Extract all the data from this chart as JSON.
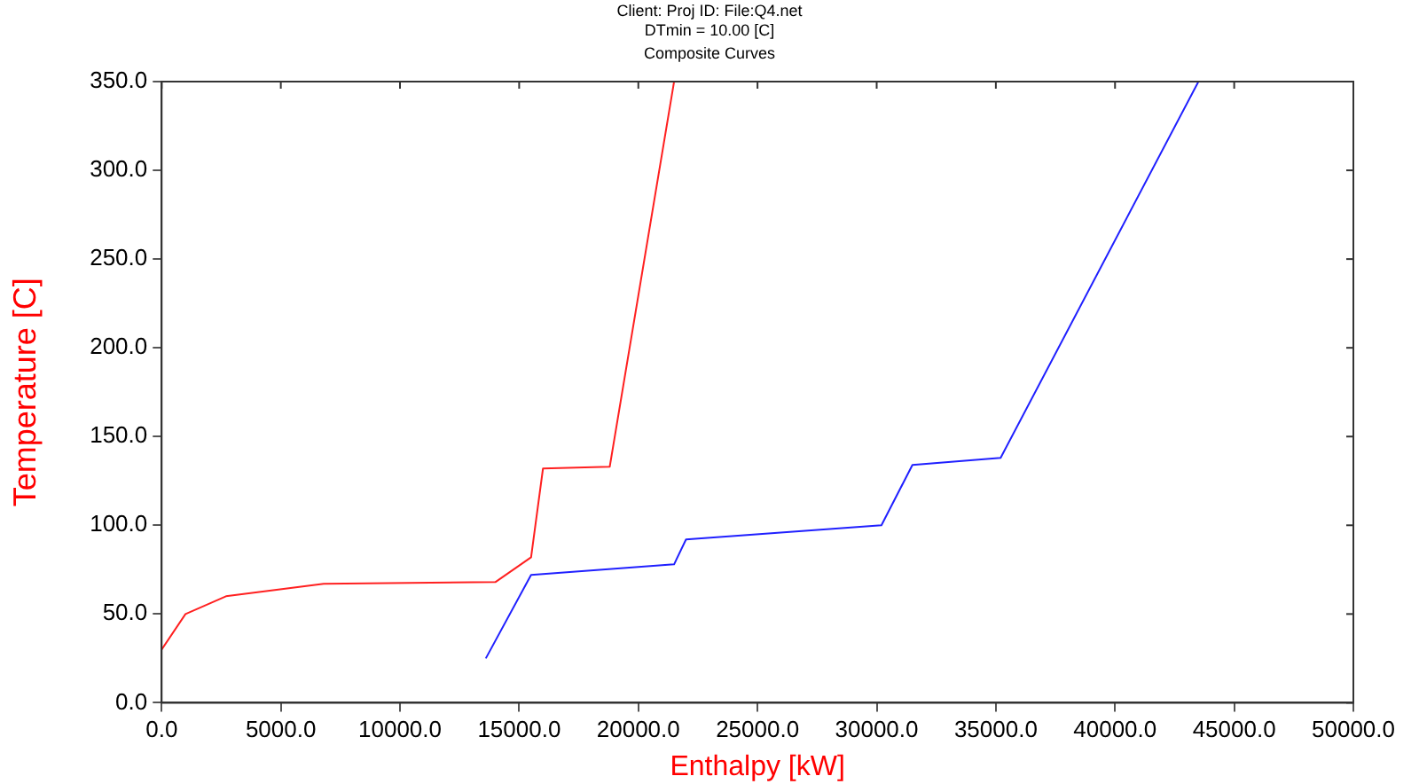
{
  "chart_data": {
    "type": "line",
    "title": "Composite Curves",
    "annotations": [
      "Client:   Proj ID:   File:Q4.net",
      "DTmin =   10.00 [C]"
    ],
    "xlabel": "Enthalpy [kW]",
    "ylabel": "Temperature [C]",
    "series": [
      {
        "color": "#ff2020",
        "x": [
          0,
          1000,
          2700,
          6800,
          14000,
          15500,
          16000,
          18800,
          21500
        ],
        "values": [
          30,
          50,
          60,
          67,
          68,
          82,
          132,
          133,
          350
        ]
      },
      {
        "color": "#2020ff",
        "x": [
          13600,
          15500,
          21500,
          22000,
          30200,
          31500,
          35200,
          43500
        ],
        "values": [
          25,
          72,
          78,
          92,
          100,
          134,
          138,
          350
        ]
      }
    ],
    "xlim": [
      0,
      50000
    ],
    "ylim": [
      0,
      350
    ],
    "xticks": [
      {
        "value": 0,
        "label": "0.0"
      },
      {
        "value": 5000,
        "label": "5000.0"
      },
      {
        "value": 10000,
        "label": "10000.0"
      },
      {
        "value": 15000,
        "label": "15000.0"
      },
      {
        "value": 20000,
        "label": "20000.0"
      },
      {
        "value": 25000,
        "label": "25000.0"
      },
      {
        "value": 30000,
        "label": "30000.0"
      },
      {
        "value": 35000,
        "label": "35000.0"
      },
      {
        "value": 40000,
        "label": "40000.0"
      },
      {
        "value": 45000,
        "label": "45000.0"
      },
      {
        "value": 50000,
        "label": "50000.0"
      }
    ],
    "yticks": [
      {
        "value": 0,
        "label": "0.0"
      },
      {
        "value": 50,
        "label": "50.0"
      },
      {
        "value": 100,
        "label": "100.0"
      },
      {
        "value": 150,
        "label": "150.0"
      },
      {
        "value": 200,
        "label": "200.0"
      },
      {
        "value": 250,
        "label": "250.0"
      },
      {
        "value": 300,
        "label": "300.0"
      },
      {
        "value": 350,
        "label": "350.0"
      }
    ],
    "grid": false,
    "legend": false,
    "marker": "none",
    "line_style": "solid"
  }
}
